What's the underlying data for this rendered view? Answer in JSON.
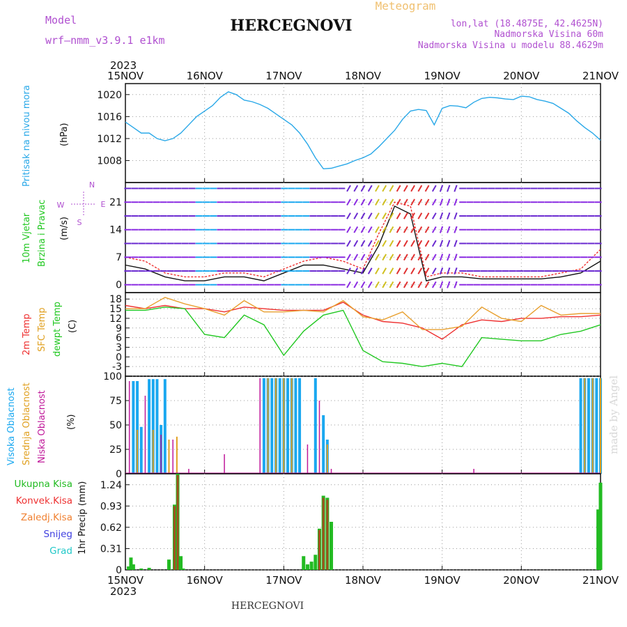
{
  "header": {
    "model_label": "Model",
    "model_name": "wrf—nmm_v3.9.1  e1km",
    "title": "HERCEGNOVI",
    "subtitle": "Meteogram",
    "coords": "lon,lat (18.4875E, 42.4625N)",
    "elevation": "Nadmorska Visina 60m",
    "model_elevation": "Nadmorska Visina u modelu 88.4629m",
    "footer_title": "HERCEGNOVI",
    "credit": "made by Angel"
  },
  "colors": {
    "pressure": "#29a8e8",
    "temp2m": "#ee3030",
    "sfc": "#e8a030",
    "dewpt": "#22c822",
    "high_cloud": "#1aa8f0",
    "mid_cloud": "#e0a020",
    "low_cloud": "#c0199a",
    "precip_total": "#22bb22",
    "precip_conv": "#a05020",
    "header_purple": "#b050d0",
    "subtitle_orange": "#f0c070"
  },
  "chart_data": [
    {
      "type": "line",
      "name": "pressure",
      "year": "2023",
      "x_ticks": [
        "15NOV",
        "16NOV",
        "17NOV",
        "18NOV",
        "19NOV",
        "20NOV",
        "21NOV"
      ],
      "ylabel": "Pritisak na nivou mora",
      "unit": "(hPa)",
      "ylim": [
        1004,
        1022
      ],
      "yticks": [
        1008,
        1012,
        1016,
        1020
      ],
      "grid": true,
      "series": [
        {
          "x": [
            0,
            0.1,
            0.2,
            0.3,
            0.4,
            0.5,
            0.6,
            0.7,
            0.8,
            0.9,
            1.0,
            1.1,
            1.2,
            1.3,
            1.4,
            1.5,
            1.6,
            1.7,
            1.8,
            1.9,
            2.0,
            2.1,
            2.2,
            2.3,
            2.4,
            2.5,
            2.6,
            2.7,
            2.8,
            2.9,
            3.0,
            3.1,
            3.2,
            3.3,
            3.4,
            3.5,
            3.6,
            3.7,
            3.8,
            3.9,
            4.0,
            4.1,
            4.2,
            4.3,
            4.4,
            4.5,
            4.6,
            4.7,
            4.8,
            4.9,
            5.0,
            5.1,
            5.2,
            5.3,
            5.4,
            5.5,
            5.6,
            5.7,
            5.8,
            5.9,
            6.0
          ],
          "values": [
            1015,
            1014,
            1013,
            1013,
            1012,
            1011.6,
            1012,
            1013,
            1014.5,
            1016,
            1017,
            1018,
            1019.5,
            1020.5,
            1020,
            1019,
            1018.7,
            1018.2,
            1017.5,
            1016.5,
            1015.5,
            1014.5,
            1013,
            1011,
            1008.5,
            1006.5,
            1006.6,
            1007,
            1007.4,
            1008,
            1008.5,
            1009.2,
            1010.5,
            1012,
            1013.5,
            1015.5,
            1017,
            1017.3,
            1017.1,
            1014.5,
            1017.5,
            1018,
            1017.9,
            1017.6,
            1018.6,
            1019.3,
            1019.5,
            1019.4,
            1019.2,
            1019.1,
            1019.7,
            1019.6,
            1019.1,
            1018.8,
            1018.4,
            1017.5,
            1016.6,
            1015.2,
            1014,
            1013,
            1011.7
          ]
        }
      ]
    },
    {
      "type": "line",
      "name": "wind",
      "ylabel": "10m Vjetar Brzina i Pravac",
      "unit": "(m/s)",
      "ylim": [
        -2,
        26
      ],
      "yticks": [
        0,
        7,
        14,
        21
      ],
      "grid": true,
      "compass": [
        "N",
        "E",
        "S",
        "W"
      ],
      "series": [
        {
          "name": "speed",
          "x": [
            0,
            0.25,
            0.5,
            0.75,
            1.0,
            1.25,
            1.5,
            1.75,
            2.0,
            2.25,
            2.5,
            2.75,
            3.0,
            3.2,
            3.4,
            3.6,
            3.8,
            4.0,
            4.25,
            4.5,
            4.75,
            5.0,
            5.25,
            5.5,
            5.75,
            6.0
          ],
          "values": [
            5,
            4,
            2,
            1,
            1,
            2,
            2,
            1,
            3,
            5,
            5,
            4,
            3,
            10,
            20,
            18,
            1,
            2,
            2,
            1.5,
            1.5,
            1.5,
            1.5,
            2,
            3,
            6
          ]
        },
        {
          "name": "gust",
          "x": [
            0,
            0.25,
            0.5,
            0.75,
            1.0,
            1.25,
            1.5,
            1.75,
            2.0,
            2.25,
            2.5,
            2.75,
            3.0,
            3.2,
            3.4,
            3.6,
            3.8,
            4.0,
            4.25,
            4.5,
            4.75,
            5.0,
            5.25,
            5.5,
            5.75,
            6.0
          ],
          "values": [
            7,
            6,
            3,
            2,
            2,
            3,
            3,
            2,
            4,
            6,
            7,
            6,
            4,
            13,
            21,
            20,
            2,
            3,
            3,
            2,
            2,
            2,
            2,
            3,
            4,
            9
          ]
        }
      ]
    },
    {
      "type": "line",
      "name": "temperature",
      "ylabel": "2m Temp / SFC Temp / dewpt Temp",
      "unit": "(C)",
      "ylim": [
        -6,
        20
      ],
      "yticks": [
        -3,
        0,
        3,
        6,
        9,
        12,
        15,
        18
      ],
      "grid": true,
      "series": [
        {
          "name": "2m Temp",
          "x": [
            0,
            0.25,
            0.5,
            0.75,
            1.0,
            1.25,
            1.5,
            1.75,
            2.0,
            2.25,
            2.5,
            2.75,
            3.0,
            3.25,
            3.5,
            3.75,
            4.0,
            4.25,
            4.5,
            4.75,
            5.0,
            5.25,
            5.5,
            5.75,
            6.0
          ],
          "values": [
            16,
            15,
            16,
            15,
            15,
            14,
            15.5,
            15,
            14.5,
            14.5,
            14.5,
            17,
            13,
            11,
            10.5,
            9,
            5.5,
            10,
            11.5,
            11,
            12,
            12,
            12.5,
            12.5,
            13
          ]
        },
        {
          "name": "SFC Temp",
          "x": [
            0,
            0.25,
            0.5,
            0.75,
            1.0,
            1.25,
            1.5,
            1.75,
            2.0,
            2.25,
            2.5,
            2.75,
            3.0,
            3.25,
            3.5,
            3.75,
            4.0,
            4.25,
            4.5,
            4.75,
            5.0,
            5.25,
            5.5,
            5.75,
            6.0
          ],
          "values": [
            15,
            15,
            18.5,
            16.5,
            15,
            13,
            17.5,
            14,
            14,
            14.5,
            14,
            17.5,
            12.5,
            11.5,
            14,
            8.5,
            8.5,
            9.5,
            15.5,
            12,
            11,
            16,
            13,
            13.5,
            13.5
          ]
        },
        {
          "name": "dewpt Temp",
          "x": [
            0,
            0.25,
            0.5,
            0.75,
            1.0,
            1.25,
            1.5,
            1.75,
            2.0,
            2.25,
            2.5,
            2.75,
            3.0,
            3.25,
            3.5,
            3.75,
            4.0,
            4.25,
            4.5,
            4.75,
            5.0,
            5.25,
            5.5,
            5.75,
            6.0
          ],
          "values": [
            14.5,
            14.5,
            15.5,
            15,
            7,
            6,
            13,
            10,
            0.5,
            8,
            13,
            14.5,
            2,
            -1.5,
            -2,
            -3,
            -2,
            -3,
            6,
            5.5,
            5,
            5,
            7,
            8,
            10
          ]
        }
      ]
    },
    {
      "type": "bar",
      "name": "cloud",
      "ylabel": "Visoka Oblacnost / Srednja Oblacnost / Niska Oblacnost",
      "unit": "(%)",
      "ylim": [
        0,
        100
      ],
      "yticks": [
        0,
        25,
        50,
        75,
        100
      ],
      "grid": true,
      "series": [
        {
          "name": "Visoka Oblacnost",
          "x": [
            0.1,
            0.15,
            0.2,
            0.3,
            0.35,
            0.4,
            0.45,
            0.5,
            1.75,
            1.8,
            1.85,
            1.9,
            1.95,
            2.0,
            2.05,
            2.1,
            2.15,
            2.2,
            2.4,
            2.5,
            2.55,
            5.75,
            5.8,
            5.85,
            5.9,
            5.95,
            6.0
          ],
          "values": [
            95,
            95,
            48,
            97,
            97,
            97,
            50,
            97,
            98,
            98,
            98,
            98,
            98,
            98,
            98,
            98,
            98,
            98,
            98,
            60,
            35,
            98,
            98,
            98,
            98,
            98,
            98
          ]
        },
        {
          "name": "Srednja Oblacnost",
          "x": [
            0.15,
            0.35,
            0.55,
            0.65,
            1.8,
            1.9,
            2.0,
            2.1,
            2.55,
            5.8,
            5.9,
            6.0
          ],
          "values": [
            45,
            45,
            35,
            38,
            98,
            98,
            98,
            98,
            30,
            98,
            98,
            98
          ]
        },
        {
          "name": "Niska Oblacnost",
          "x": [
            0.05,
            0.25,
            0.45,
            0.6,
            0.8,
            1.25,
            1.7,
            2.3,
            2.45,
            2.6,
            4.4
          ],
          "values": [
            95,
            80,
            40,
            35,
            5,
            20,
            98,
            30,
            75,
            5,
            5
          ]
        }
      ]
    },
    {
      "type": "bar",
      "name": "precip",
      "ylabel": "1hr Precip",
      "unit": "(mm)",
      "ylim": [
        0,
        1.4
      ],
      "yticks": [
        0,
        0.31,
        0.62,
        0.93,
        1.24
      ],
      "grid": true,
      "x_ticks": [
        "15NOV",
        "16NOV",
        "17NOV",
        "18NOV",
        "19NOV",
        "20NOV",
        "21NOV"
      ],
      "year": "2023",
      "legend": [
        "Ukupna Kisa",
        "Konvek.Kisa",
        "Zaledj.Kisa",
        "Snijeg",
        "Grad"
      ],
      "legend_colors": [
        "#22bb22",
        "#ee3030",
        "#f08030",
        "#4040e0",
        "#20c8c8"
      ],
      "series": [
        {
          "name": "Ukupna Kisa",
          "x": [
            0.04,
            0.07,
            0.1,
            0.2,
            0.3,
            0.55,
            0.62,
            0.66,
            0.7,
            0.73,
            2.25,
            2.3,
            2.35,
            2.4,
            2.45,
            2.5,
            2.55,
            2.6,
            5.97,
            6.0
          ],
          "values": [
            0.05,
            0.18,
            0.08,
            0.02,
            0.03,
            0.15,
            0.95,
            1.4,
            0.2,
            0.02,
            0.2,
            0.08,
            0.12,
            0.22,
            0.6,
            1.08,
            1.05,
            0.7,
            0.88,
            1.27
          ]
        },
        {
          "name": "Konvek.Kisa",
          "x": [
            0.62,
            0.66,
            2.45,
            2.5,
            2.55
          ],
          "values": [
            0.93,
            1.38,
            0.58,
            1.05,
            1.02
          ]
        }
      ]
    }
  ]
}
